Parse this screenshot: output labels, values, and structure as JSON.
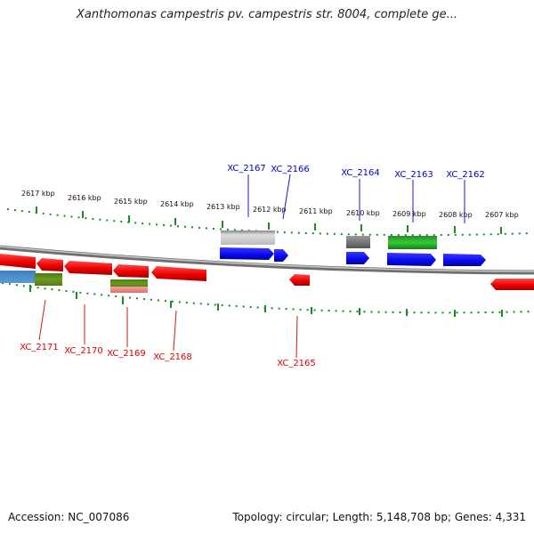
{
  "title": "Xanthomonas campestris pv. campestris str. 8004, complete ge...",
  "footer": {
    "accession": "Accession: NC_007086",
    "summary": "Topology: circular; Length: 5,148,708 bp; Genes: 4,331"
  },
  "kbp_labels": [
    "2617 kbp",
    "2616 kbp",
    "2615 kbp",
    "2614 kbp",
    "2613 kbp",
    "2612 kbp",
    "2611 kbp",
    "2610 kbp",
    "2609 kbp",
    "2608 kbp",
    "2607 kbp"
  ],
  "top_genes": [
    "XC_2167",
    "XC_2166",
    "XC_2164",
    "XC_2163",
    "XC_2162"
  ],
  "bottom_genes": [
    "XC_2171",
    "XC_2170",
    "XC_2169",
    "XC_2168",
    "XC_2165"
  ],
  "colors": {
    "forward": "#1010e8",
    "reverse": "#f01010",
    "label_forward": "#0000cc",
    "label_reverse": "#dd0000",
    "tick": "#1f8a1f",
    "backbone": "#808080"
  }
}
